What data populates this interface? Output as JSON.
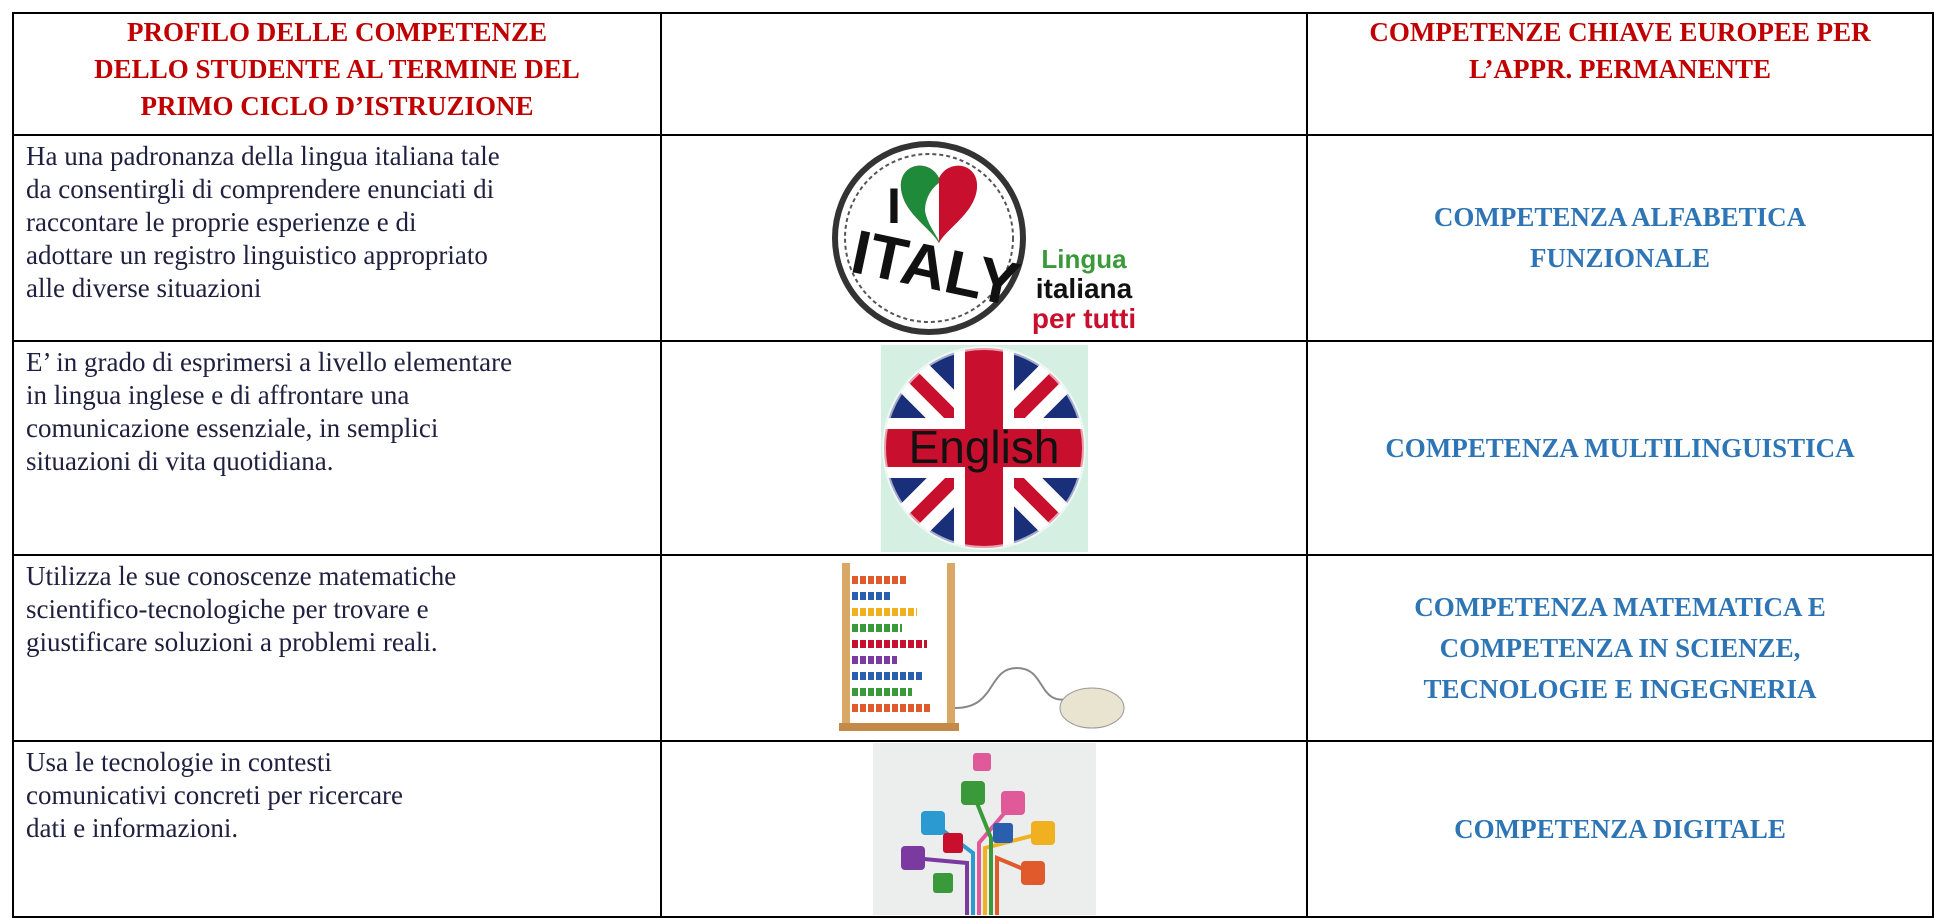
{
  "table": {
    "header": {
      "profile": [
        "PROFILO DELLE COMPETENZE",
        "DELLO STUDENTE AL TERMINE DEL",
        "PRIMO CICLO D’ISTRUZIONE"
      ],
      "key": [
        "COMPETENZE CHIAVE EUROPEE PER",
        "L’APPR. PERMANENTE"
      ]
    },
    "rows": [
      {
        "profile": [
          "Ha una padronanza della lingua italiana tale",
          "da consentirgli di comprendere enunciati di",
          "raccontare le proprie esperienze e di",
          "adottare un registro linguistico appropriato",
          "alle diverse situazioni"
        ],
        "image_text": [
          "I",
          "ITALY",
          "Lingua",
          "italiana",
          "per tutti"
        ],
        "competence": [
          "COMPETENZA ALFABETICA",
          "FUNZIONALE"
        ]
      },
      {
        "profile": [
          "E’ in grado di esprimersi a livello elementare",
          "in lingua inglese e di affrontare una",
          "comunicazione essenziale, in semplici",
          "situazioni di vita quotidiana."
        ],
        "image_text": [
          "English"
        ],
        "competence": [
          "COMPETENZA MULTILINGUISTICA"
        ]
      },
      {
        "profile": [
          "Utilizza le sue conoscenze matematiche",
          "scientifico-tecnologiche per trovare e",
          "giustificare soluzioni a problemi reali."
        ],
        "competence": [
          "COMPETENZA MATEMATICA E",
          "COMPETENZA IN SCIENZE,",
          "TECNOLOGIE E INGEGNERIA"
        ]
      },
      {
        "profile": [
          "Usa le tecnologie in contesti",
          "comunicativi concreti per ricercare",
          "dati e informazioni."
        ],
        "competence": [
          "COMPETENZA DIGITALE"
        ]
      }
    ]
  }
}
